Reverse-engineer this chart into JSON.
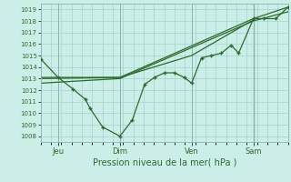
{
  "xlabel": "Pression niveau de la mer( hPa )",
  "ylim": [
    1007.5,
    1019.5
  ],
  "yticks": [
    1008,
    1009,
    1010,
    1011,
    1012,
    1013,
    1014,
    1015,
    1016,
    1017,
    1018,
    1019
  ],
  "bg_color": "#cceee8",
  "grid_color": "#aad8d2",
  "line_color": "#2d6a2d",
  "xtick_labels": [
    "Jeu",
    "Dim",
    "Ven",
    "Sam"
  ],
  "xtick_positions": [
    0.07,
    0.32,
    0.61,
    0.86
  ],
  "line1_x": [
    0.0,
    0.07,
    0.13,
    0.18,
    0.2,
    0.25,
    0.32,
    0.37,
    0.42,
    0.46,
    0.5,
    0.54,
    0.58,
    0.61,
    0.65,
    0.69,
    0.73,
    0.77,
    0.8,
    0.86,
    0.9,
    0.95,
    1.0
  ],
  "line1_y": [
    1014.7,
    1013.1,
    1012.1,
    1011.2,
    1010.4,
    1008.8,
    1008.0,
    1009.4,
    1012.5,
    1013.1,
    1013.5,
    1013.5,
    1013.1,
    1012.6,
    1014.8,
    1015.0,
    1015.2,
    1015.9,
    1015.2,
    1018.2,
    1018.2,
    1018.2,
    1019.2
  ],
  "line2_x": [
    0.0,
    0.32,
    0.86,
    1.0
  ],
  "line2_y": [
    1013.1,
    1013.1,
    1018.2,
    1019.2
  ],
  "line3_x": [
    0.0,
    0.32,
    0.86,
    1.0
  ],
  "line3_y": [
    1012.6,
    1013.0,
    1018.0,
    1018.8
  ],
  "line4_x": [
    0.0,
    0.32,
    0.61,
    0.86
  ],
  "line4_y": [
    1013.0,
    1013.1,
    1015.0,
    1018.1
  ]
}
